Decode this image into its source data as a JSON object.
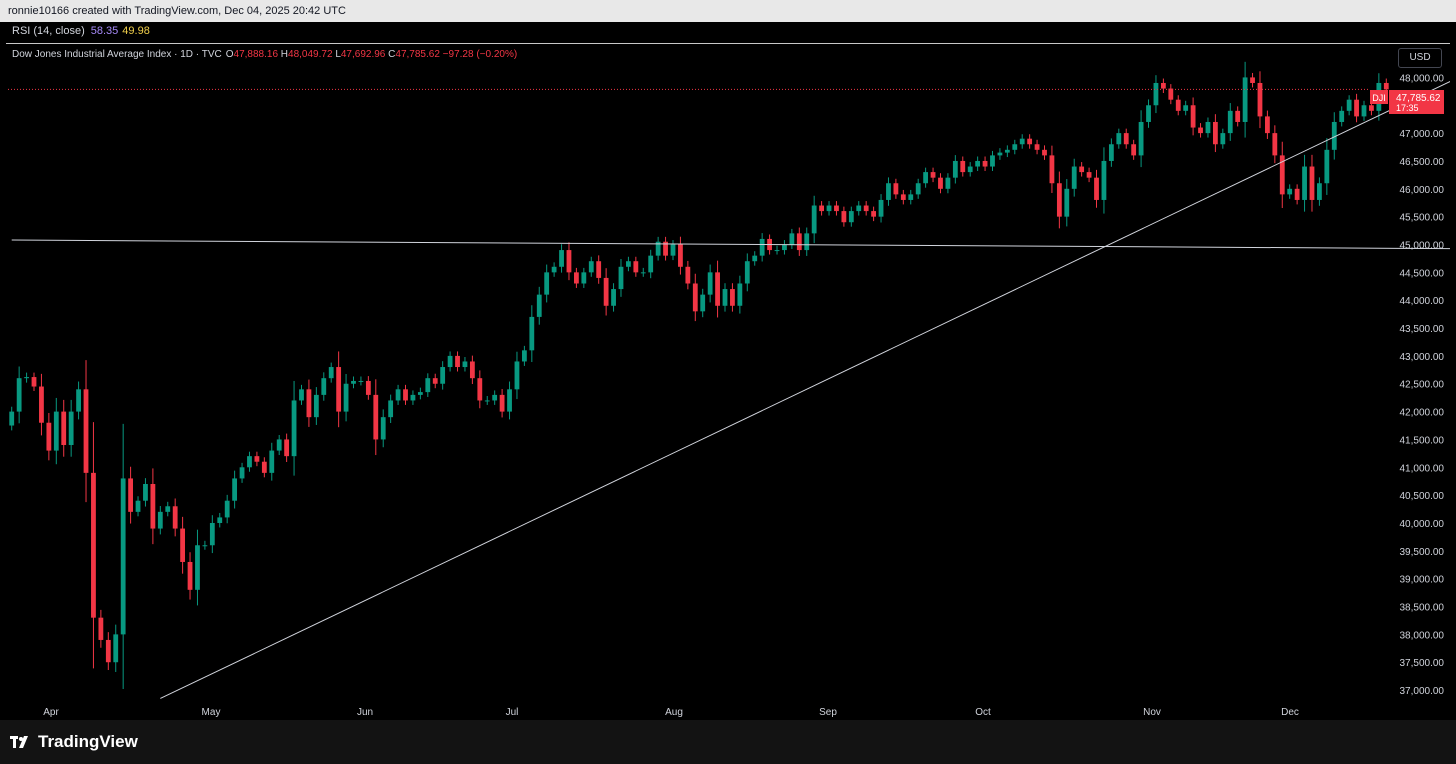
{
  "topbar": {
    "text": "ronnie10166 created with TradingView.com, Dec 04, 2025 20:42 UTC"
  },
  "rsi": {
    "label": "RSI (14, close)",
    "value1": "58.35",
    "value2": "49.98"
  },
  "legend": {
    "symbol": "Dow Jones Industrial Average Index · 1D · TVC",
    "o_label": "O",
    "o_value": "47,888.16",
    "h_label": "H",
    "h_value": "48,049.72",
    "l_label": "L",
    "l_value": "47,692.96",
    "c_label": "C",
    "c_value": "47,785.62",
    "change": "−97.28 (−0.20%)"
  },
  "currency_button": "USD",
  "price_tag": {
    "symbol": "DJI",
    "price": "47,785.62",
    "countdown": "17:35"
  },
  "footer": {
    "brand": "TradingView",
    "logo_icon": "tradingview-logo-icon"
  },
  "colors": {
    "up": "#089981",
    "down": "#f23645",
    "background": "#000000",
    "line": "#d1d4dc"
  },
  "chart_data": {
    "type": "candlestick",
    "x_axis_labels": [
      "Apr",
      "May",
      "Jun",
      "Jul",
      "Aug",
      "Sep",
      "Oct",
      "Nov",
      "Dec"
    ],
    "y_axis_labels": [
      "48,000.00",
      "47,500.00",
      "47,000.00",
      "46,500.00",
      "46,000.00",
      "45,500.00",
      "45,000.00",
      "44,500.00",
      "44,000.00",
      "43,500.00",
      "43,000.00",
      "42,500.00",
      "42,000.00",
      "41,500.00",
      "41,000.00",
      "40,500.00",
      "40,000.00",
      "39,500.00",
      "39,000.00",
      "38,500.00",
      "38,000.00",
      "37,500.00",
      "37,000.00"
    ],
    "ylim": [
      36750,
      48600
    ],
    "grid": false,
    "last_price": 47785.62,
    "closes": [
      42000,
      42600,
      42620,
      42450,
      41800,
      41300,
      42000,
      41400,
      42000,
      42400,
      40900,
      38300,
      37900,
      37500,
      38000,
      40800,
      40200,
      40400,
      40700,
      39900,
      40200,
      40300,
      39900,
      39300,
      38800,
      39600,
      39600,
      40000,
      40100,
      40400,
      40800,
      41000,
      41200,
      41100,
      40900,
      41300,
      41500,
      41200,
      42200,
      42400,
      41900,
      42300,
      42600,
      42800,
      42000,
      42500,
      42550,
      42550,
      42300,
      41500,
      41900,
      42200,
      42400,
      42200,
      42300,
      42350,
      42600,
      42500,
      42800,
      43000,
      42800,
      42900,
      42600,
      42200,
      42200,
      42300,
      42000,
      42400,
      42900,
      43100,
      43700,
      44100,
      44500,
      44600,
      44900,
      44500,
      44300,
      44500,
      44700,
      44400,
      43900,
      44200,
      44600,
      44700,
      44500,
      44500,
      44800,
      45050,
      44800,
      45000,
      44600,
      44300,
      43800,
      44100,
      44500,
      43900,
      44200,
      43900,
      44300,
      44700,
      44800,
      45100,
      44900,
      44900,
      45000,
      45200,
      44900,
      45200,
      45700,
      45600,
      45700,
      45600,
      45400,
      45600,
      45700,
      45600,
      45500,
      45800,
      46100,
      45900,
      45800,
      45900,
      46100,
      46300,
      46200,
      46000,
      46200,
      46500,
      46300,
      46400,
      46500,
      46400,
      46600,
      46650,
      46700,
      46800,
      46900,
      46800,
      46700,
      46600,
      46100,
      45500,
      46000,
      46400,
      46300,
      46200,
      45800,
      46500,
      46800,
      47000,
      46800,
      46600,
      47200,
      47500,
      47900,
      47800,
      47600,
      47400,
      47500,
      47100,
      47000,
      47200,
      46800,
      47000,
      47400,
      47200,
      48000,
      47900,
      47300,
      47000,
      46600,
      45900,
      46000,
      45800,
      46400,
      45800,
      46100,
      46700,
      47200,
      47400,
      47600,
      47300,
      47500,
      47400,
      47900,
      47785.62
    ],
    "annotations": [
      {
        "type": "trendline",
        "from": {
          "x": 20,
          "y": 36850
        },
        "to": {
          "x": 201,
          "y": 48400
        }
      },
      {
        "type": "trendline",
        "from": {
          "x": 0,
          "y": 45080
        },
        "to": {
          "x": 201,
          "y": 44920
        }
      },
      {
        "type": "horizontal",
        "y": 47785.62,
        "style": "dotted"
      }
    ]
  }
}
